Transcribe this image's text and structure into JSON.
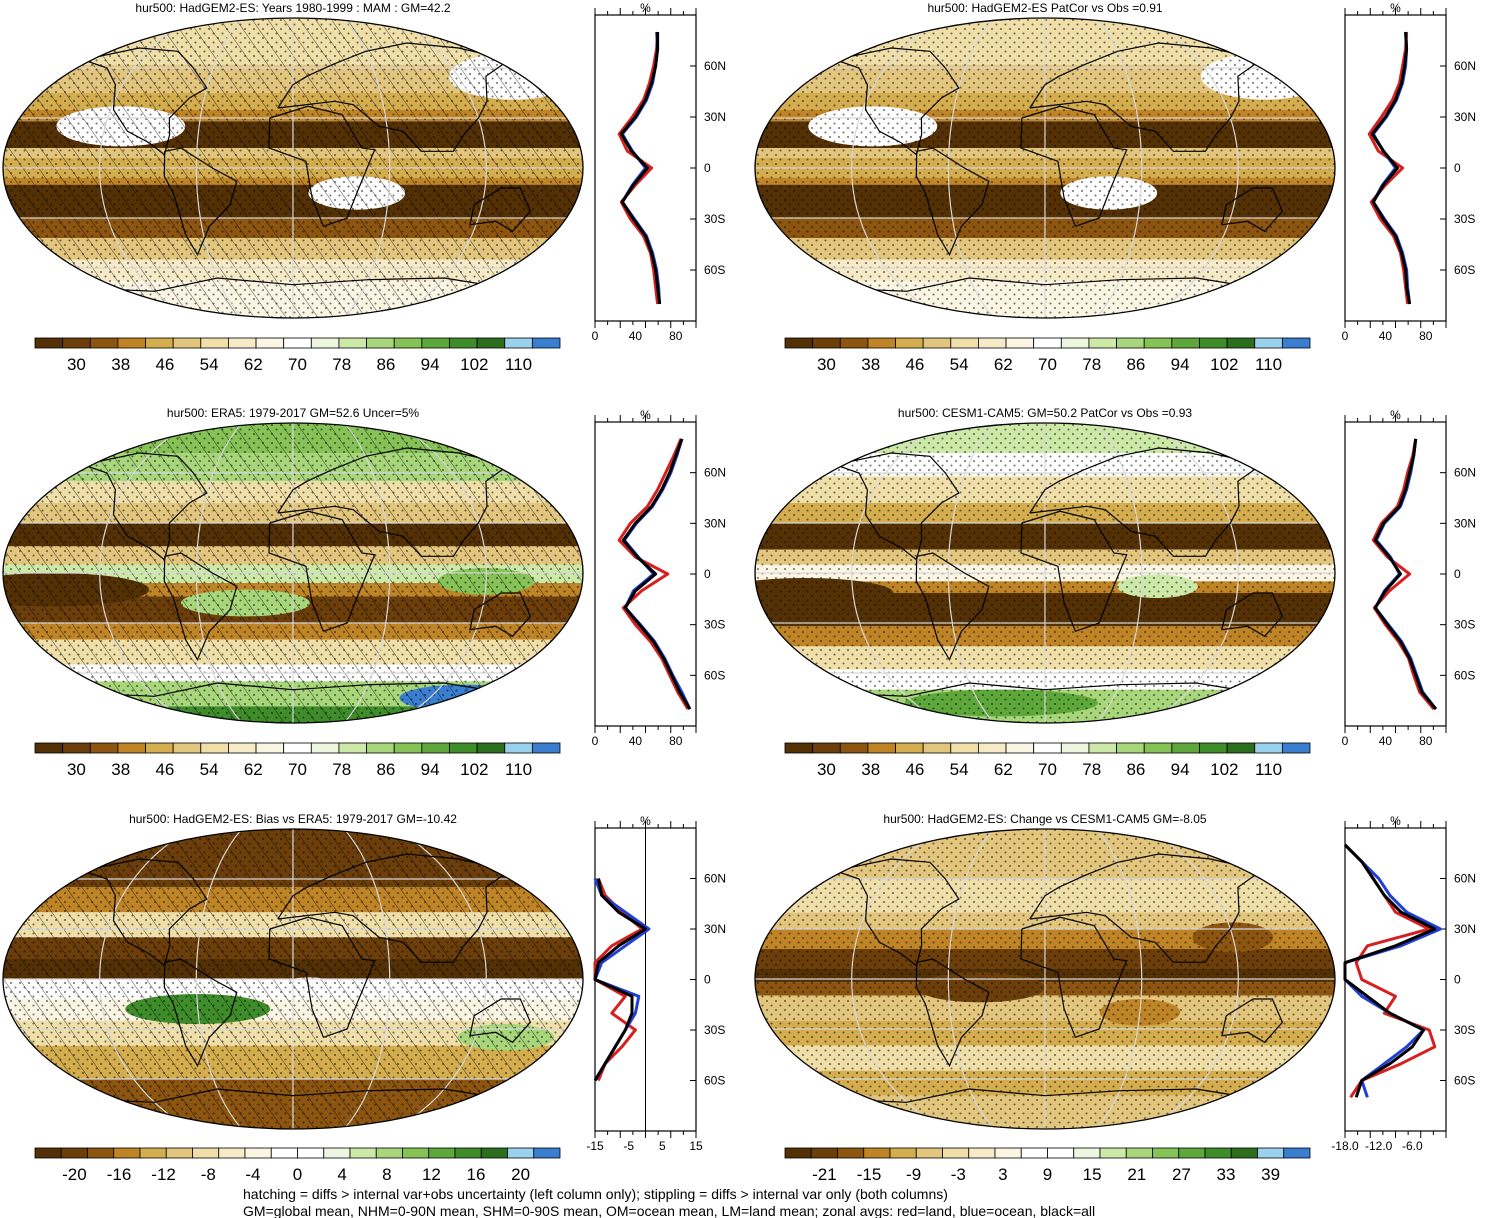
{
  "colors": {
    "palette_abs": [
      "#543005",
      "#6b3e0a",
      "#8c5510",
      "#bf8426",
      "#d4ad4e",
      "#e3c67e",
      "#f0dfa8",
      "#f6ebc6",
      "#fbf6e4",
      "#ffffff",
      "#eef6e0",
      "#cde9a8",
      "#a8d67a",
      "#86c356",
      "#5ea83b",
      "#3f8d2a",
      "#2a6e1e",
      "#9ad2ee",
      "#3a7ed0"
    ],
    "palette_diff": [
      "#543005",
      "#6b3e0a",
      "#8c5510",
      "#bf8426",
      "#d4ad4e",
      "#e3c67e",
      "#f0dfa8",
      "#f6ebc6",
      "#fbf6e4",
      "#ffffff",
      "#ffffff",
      "#eef6e0",
      "#cde9a8",
      "#a8d67a",
      "#86c356",
      "#5ea83b",
      "#3f8d2a",
      "#2a6e1e",
      "#9ad2ee",
      "#3a7ed0"
    ],
    "land": "#d62020",
    "ocean": "#1f3fd6",
    "all": "#000000"
  },
  "chart_data": [
    {
      "id": "p1",
      "type": "heatmap",
      "title": "hur500: HadGEM2-ES: Years 1980-1999 : MAM : GM=42.2",
      "colorbar_labels": [
        "30",
        "38",
        "46",
        "54",
        "62",
        "70",
        "78",
        "86",
        "94",
        "102",
        "110"
      ],
      "map_style": {
        "hatching": true,
        "stippling": true,
        "pattern": "abs_dry"
      },
      "zonal_profile": {
        "xlabel": "%",
        "xticks": [
          "0",
          "40",
          "80"
        ],
        "xlim": [
          0,
          100
        ],
        "yticks": [
          "60N",
          "30N",
          "0",
          "30S",
          "60S"
        ],
        "lat": [
          80,
          70,
          60,
          50,
          40,
          30,
          20,
          10,
          0,
          -10,
          -20,
          -30,
          -40,
          -50,
          -60,
          -70,
          -80
        ],
        "all": [
          62,
          62,
          60,
          56,
          50,
          40,
          26,
          36,
          52,
          38,
          27,
          38,
          50,
          56,
          60,
          62,
          64
        ],
        "land": [
          62,
          61,
          58,
          54,
          48,
          37,
          24,
          32,
          56,
          40,
          26,
          35,
          48,
          55,
          58,
          60,
          62
        ],
        "ocean": [
          61,
          62,
          60,
          57,
          51,
          41,
          27,
          37,
          50,
          37,
          27,
          39,
          51,
          57,
          61,
          63,
          64
        ]
      }
    },
    {
      "id": "p2",
      "type": "heatmap",
      "title": "hur500: HadGEM2-ES PatCor vs Obs =0.91",
      "colorbar_labels": [
        "30",
        "38",
        "46",
        "54",
        "62",
        "70",
        "78",
        "86",
        "94",
        "102",
        "110"
      ],
      "map_style": {
        "hatching": false,
        "stippling": true,
        "pattern": "abs_dry"
      },
      "zonal_profile": {
        "xlabel": "%",
        "xticks": [
          "0",
          "40",
          "80"
        ],
        "xlim": [
          0,
          100
        ],
        "yticks": [
          "60N",
          "30N",
          "0",
          "30S",
          "60S"
        ],
        "lat": [
          80,
          70,
          60,
          50,
          40,
          30,
          20,
          10,
          0,
          -10,
          -20,
          -30,
          -40,
          -50,
          -60,
          -70,
          -80
        ],
        "all": [
          60,
          61,
          59,
          56,
          50,
          40,
          27,
          38,
          52,
          38,
          28,
          38,
          50,
          56,
          60,
          61,
          64
        ],
        "land": [
          61,
          60,
          57,
          54,
          47,
          36,
          24,
          33,
          57,
          40,
          26,
          35,
          48,
          55,
          58,
          60,
          62
        ],
        "ocean": [
          60,
          61,
          60,
          57,
          51,
          41,
          28,
          38,
          50,
          37,
          28,
          39,
          51,
          57,
          61,
          62,
          64
        ]
      }
    },
    {
      "id": "p3",
      "type": "heatmap",
      "title": "hur500: ERA5: 1979-2017 GM=52.6 Uncer=5%",
      "colorbar_labels": [
        "30",
        "38",
        "46",
        "54",
        "62",
        "70",
        "78",
        "86",
        "94",
        "102",
        "110"
      ],
      "map_style": {
        "hatching": true,
        "stippling": true,
        "pattern": "abs_wet"
      },
      "zonal_profile": {
        "xlabel": "%",
        "xticks": [
          "0",
          "40",
          "80"
        ],
        "xlim": [
          0,
          100
        ],
        "yticks": [
          "60N",
          "30N",
          "0",
          "30S",
          "60S"
        ],
        "lat": [
          80,
          70,
          60,
          50,
          40,
          30,
          20,
          10,
          0,
          -10,
          -20,
          -30,
          -40,
          -50,
          -60,
          -70,
          -80
        ],
        "all": [
          86,
          80,
          74,
          66,
          56,
          40,
          28,
          42,
          60,
          40,
          30,
          44,
          58,
          68,
          76,
          84,
          94
        ],
        "land": [
          85,
          78,
          70,
          62,
          52,
          35,
          24,
          40,
          72,
          46,
          28,
          40,
          55,
          66,
          74,
          82,
          92
        ],
        "ocean": [
          86,
          81,
          75,
          67,
          57,
          41,
          29,
          43,
          58,
          38,
          30,
          45,
          59,
          69,
          77,
          86,
          94
        ]
      }
    },
    {
      "id": "p4",
      "type": "heatmap",
      "title": "hur500: CESM1-CAM5: GM=50.2 PatCor vs Obs =0.93",
      "colorbar_labels": [
        "30",
        "38",
        "46",
        "54",
        "62",
        "70",
        "78",
        "86",
        "94",
        "102",
        "110"
      ],
      "map_style": {
        "hatching": false,
        "stippling": true,
        "pattern": "abs_mid"
      },
      "zonal_profile": {
        "xlabel": "%",
        "xticks": [
          "0",
          "40",
          "80"
        ],
        "xlim": [
          0,
          100
        ],
        "yticks": [
          "60N",
          "30N",
          "0",
          "30S",
          "60S"
        ],
        "lat": [
          80,
          70,
          60,
          50,
          40,
          30,
          20,
          10,
          0,
          -10,
          -20,
          -30,
          -40,
          -50,
          -60,
          -70,
          -80
        ],
        "all": [
          70,
          68,
          64,
          60,
          54,
          38,
          30,
          44,
          55,
          40,
          30,
          42,
          55,
          64,
          70,
          76,
          90
        ],
        "land": [
          70,
          67,
          62,
          58,
          52,
          36,
          28,
          42,
          64,
          44,
          29,
          40,
          53,
          63,
          68,
          74,
          88
        ],
        "ocean": [
          70,
          68,
          65,
          61,
          55,
          39,
          31,
          45,
          54,
          39,
          30,
          43,
          56,
          65,
          71,
          77,
          90
        ]
      }
    },
    {
      "id": "p5",
      "type": "heatmap",
      "title": "hur500: HadGEM2-ES: Bias vs ERA5: 1979-2017 GM=-10.42",
      "colorbar_labels": [
        "-20",
        "-16",
        "-12",
        "-8",
        "-4",
        "0",
        "4",
        "8",
        "12",
        "16",
        "20"
      ],
      "map_style": {
        "hatching": true,
        "stippling": true,
        "pattern": "diff_bias"
      },
      "zonal_profile": {
        "xlabel": "%",
        "xticks": [
          "-15",
          "-5",
          "5",
          "15"
        ],
        "xlim": [
          -15,
          15
        ],
        "yticks": [
          "60N",
          "30N",
          "0",
          "30S",
          "60S"
        ],
        "lat": [
          60,
          50,
          40,
          30,
          20,
          10,
          0,
          -10,
          -20,
          -30,
          -40,
          -50,
          -60
        ],
        "all": [
          -14,
          -13,
          -8,
          0,
          -8,
          -14,
          -17,
          -4,
          -4,
          -6,
          -9,
          -12,
          -15
        ],
        "land": [
          -14,
          -12,
          -7,
          -1,
          -10,
          -15,
          -18,
          -6,
          -10,
          -3,
          -7,
          -12,
          -14
        ],
        "ocean": [
          -15,
          -13,
          -6,
          1,
          -6,
          -13,
          -16,
          -2,
          -3,
          -6,
          -9,
          -12,
          -15
        ]
      }
    },
    {
      "id": "p6",
      "type": "heatmap",
      "title": "hur500: HadGEM2-ES: Change vs CESM1-CAM5 GM=-8.05",
      "colorbar_labels": [
        "-21",
        "-15",
        "-9",
        "-3",
        "3",
        "9",
        "15",
        "21",
        "27",
        "33",
        "39"
      ],
      "map_style": {
        "hatching": false,
        "stippling": true,
        "pattern": "diff_change"
      },
      "zonal_profile": {
        "xlabel": "%",
        "xticks": [
          "-18.0",
          "-12.0",
          "-6.0"
        ],
        "xlim": [
          -18,
          0
        ],
        "yticks": [
          "60N",
          "30N",
          "0",
          "30S",
          "60S"
        ],
        "lat": [
          80,
          70,
          60,
          50,
          40,
          30,
          20,
          10,
          0,
          -10,
          -20,
          -30,
          -40,
          -50,
          -60,
          -70
        ],
        "all": [
          -18,
          -15,
          -13,
          -11,
          -8,
          -2,
          -9,
          -18,
          -18,
          -14,
          -10,
          -4,
          -6,
          -10,
          -15,
          -16
        ],
        "land": [
          -18,
          -15,
          -13,
          -11,
          -9,
          -3,
          -14,
          -16,
          -15,
          -9,
          -11,
          -3,
          -2,
          -8,
          -15,
          -17
        ],
        "ocean": [
          -18,
          -15,
          -12,
          -10,
          -7,
          -1,
          -8,
          -18,
          -18,
          -15,
          -10,
          -4,
          -7,
          -11,
          -15,
          -14
        ]
      }
    }
  ],
  "footer": {
    "line1": "hatching = diffs > internal var+obs uncertainty (left column only); stippling = diffs > internal var only (both columns)",
    "line2": "GM=global mean, NHM=0-90N mean, SHM=0-90S mean, OM=ocean mean, LM=land mean; zonal avgs: red=land, blue=ocean, black=all"
  }
}
